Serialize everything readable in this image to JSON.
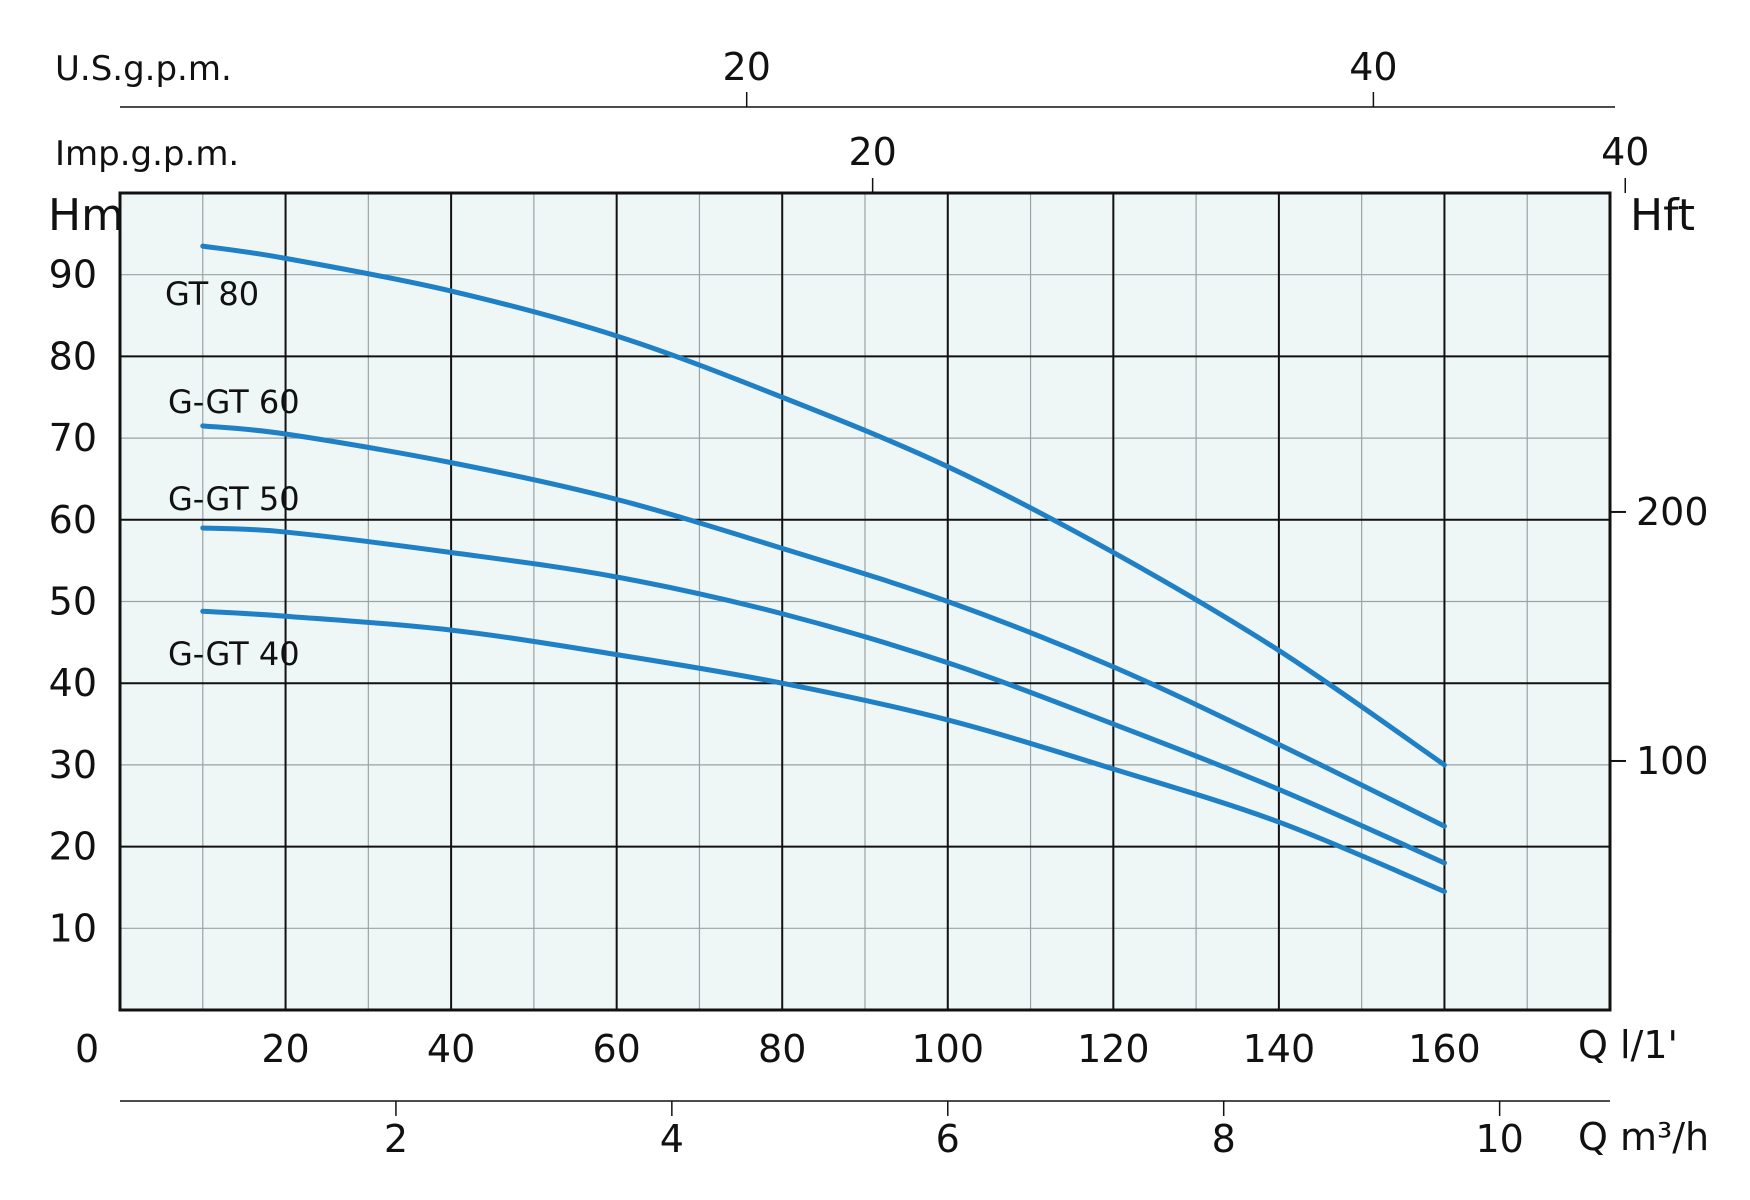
{
  "chart_data": {
    "type": "line",
    "colors": {
      "plot_bg": "#eef6f6",
      "curve": "#1f80c6",
      "grid_major": "#111111",
      "grid_minor": "#9aa3a3"
    },
    "grid": true,
    "y_left": {
      "label": "Hm",
      "range": [
        0,
        100
      ],
      "ticks": [
        10,
        20,
        30,
        40,
        50,
        60,
        70,
        80,
        90
      ]
    },
    "y_right": {
      "label": "Hft",
      "ticks": [
        100,
        200
      ]
    },
    "x_bottom": {
      "label": "Q l/1'",
      "range": [
        0,
        180
      ],
      "ticks": [
        20,
        40,
        60,
        80,
        100,
        120,
        140,
        160
      ],
      "origin_label": "0"
    },
    "x_m3h": {
      "label_q": "Q",
      "label_unit": "m³/h",
      "ticks": [
        2,
        4,
        6,
        8,
        10
      ]
    },
    "x_usgpm": {
      "label": "U.S.g.p.m.",
      "ticks": [
        20,
        40
      ]
    },
    "x_impgpm": {
      "label": "Imp.g.p.m.",
      "ticks": [
        20,
        40
      ]
    },
    "series": [
      {
        "name": "GT 80",
        "x": [
          10,
          20,
          40,
          60,
          80,
          100,
          120,
          140,
          160
        ],
        "y": [
          93.5,
          92,
          88,
          82.5,
          75,
          66.5,
          56,
          44,
          30
        ]
      },
      {
        "name": "G-GT 60",
        "x": [
          10,
          20,
          40,
          60,
          80,
          100,
          120,
          140,
          160
        ],
        "y": [
          71.5,
          70.5,
          67,
          62.5,
          56.5,
          50,
          42,
          32.5,
          22.5
        ]
      },
      {
        "name": "G-GT 50",
        "x": [
          10,
          20,
          40,
          60,
          80,
          100,
          120,
          140,
          160
        ],
        "y": [
          59,
          58.5,
          56,
          53,
          48.5,
          42.5,
          35,
          27,
          18
        ]
      },
      {
        "name": "G-GT 40",
        "x": [
          10,
          20,
          40,
          60,
          80,
          100,
          120,
          140,
          160
        ],
        "y": [
          48.8,
          48.2,
          46.5,
          43.5,
          40,
          35.5,
          29.5,
          23,
          14.5
        ]
      }
    ]
  }
}
